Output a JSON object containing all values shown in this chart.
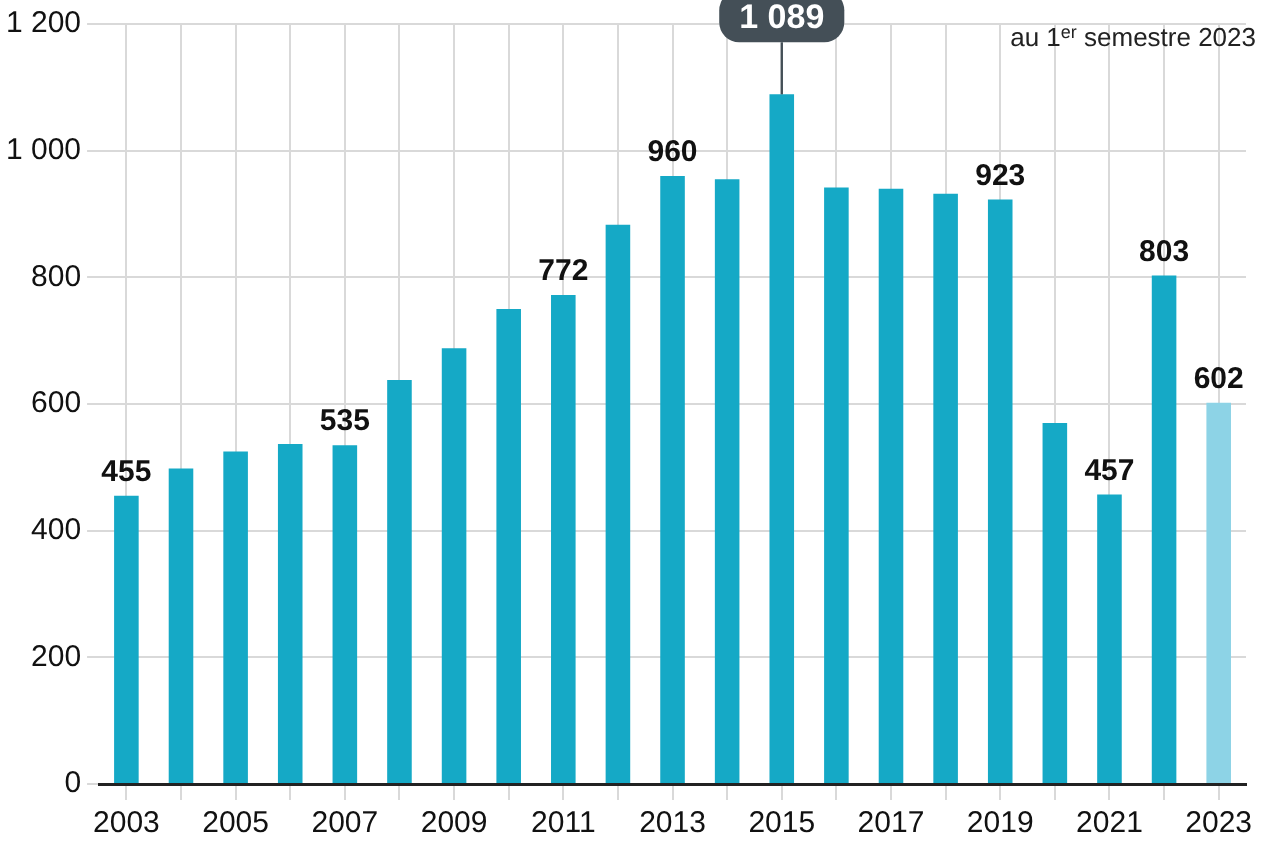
{
  "chart_data": {
    "type": "bar",
    "categories": [
      "2003",
      null,
      "2005",
      null,
      "2007",
      null,
      "2009",
      null,
      "2011",
      null,
      "2013",
      null,
      "2015",
      null,
      "2017",
      null,
      "2019",
      null,
      "2021",
      null,
      "2023"
    ],
    "values": [
      455,
      498,
      525,
      537,
      535,
      638,
      688,
      750,
      772,
      883,
      960,
      955,
      1089,
      942,
      940,
      932,
      923,
      570,
      457,
      803,
      602
    ],
    "colors": [
      "#15a9c6",
      "#15a9c6",
      "#15a9c6",
      "#15a9c6",
      "#15a9c6",
      "#15a9c6",
      "#15a9c6",
      "#15a9c6",
      "#15a9c6",
      "#15a9c6",
      "#15a9c6",
      "#15a9c6",
      "#15a9c6",
      "#15a9c6",
      "#15a9c6",
      "#15a9c6",
      "#15a9c6",
      "#15a9c6",
      "#15a9c6",
      "#15a9c6",
      "#8dd3e6"
    ],
    "value_labels": [
      "455",
      null,
      null,
      null,
      "535",
      null,
      null,
      null,
      "772",
      null,
      "960",
      null,
      "1 089",
      null,
      null,
      null,
      "923",
      null,
      "457",
      "803",
      "602"
    ],
    "ylim": [
      0,
      1200
    ],
    "yticks": [
      0,
      200,
      400,
      600,
      800,
      {
        "value": 1000,
        "label": "1 000"
      },
      {
        "value": 1200,
        "label": "1 200"
      }
    ],
    "grid": true,
    "annotations": [
      "au 1$^{er}$ semestre 2023"
    ]
  }
}
